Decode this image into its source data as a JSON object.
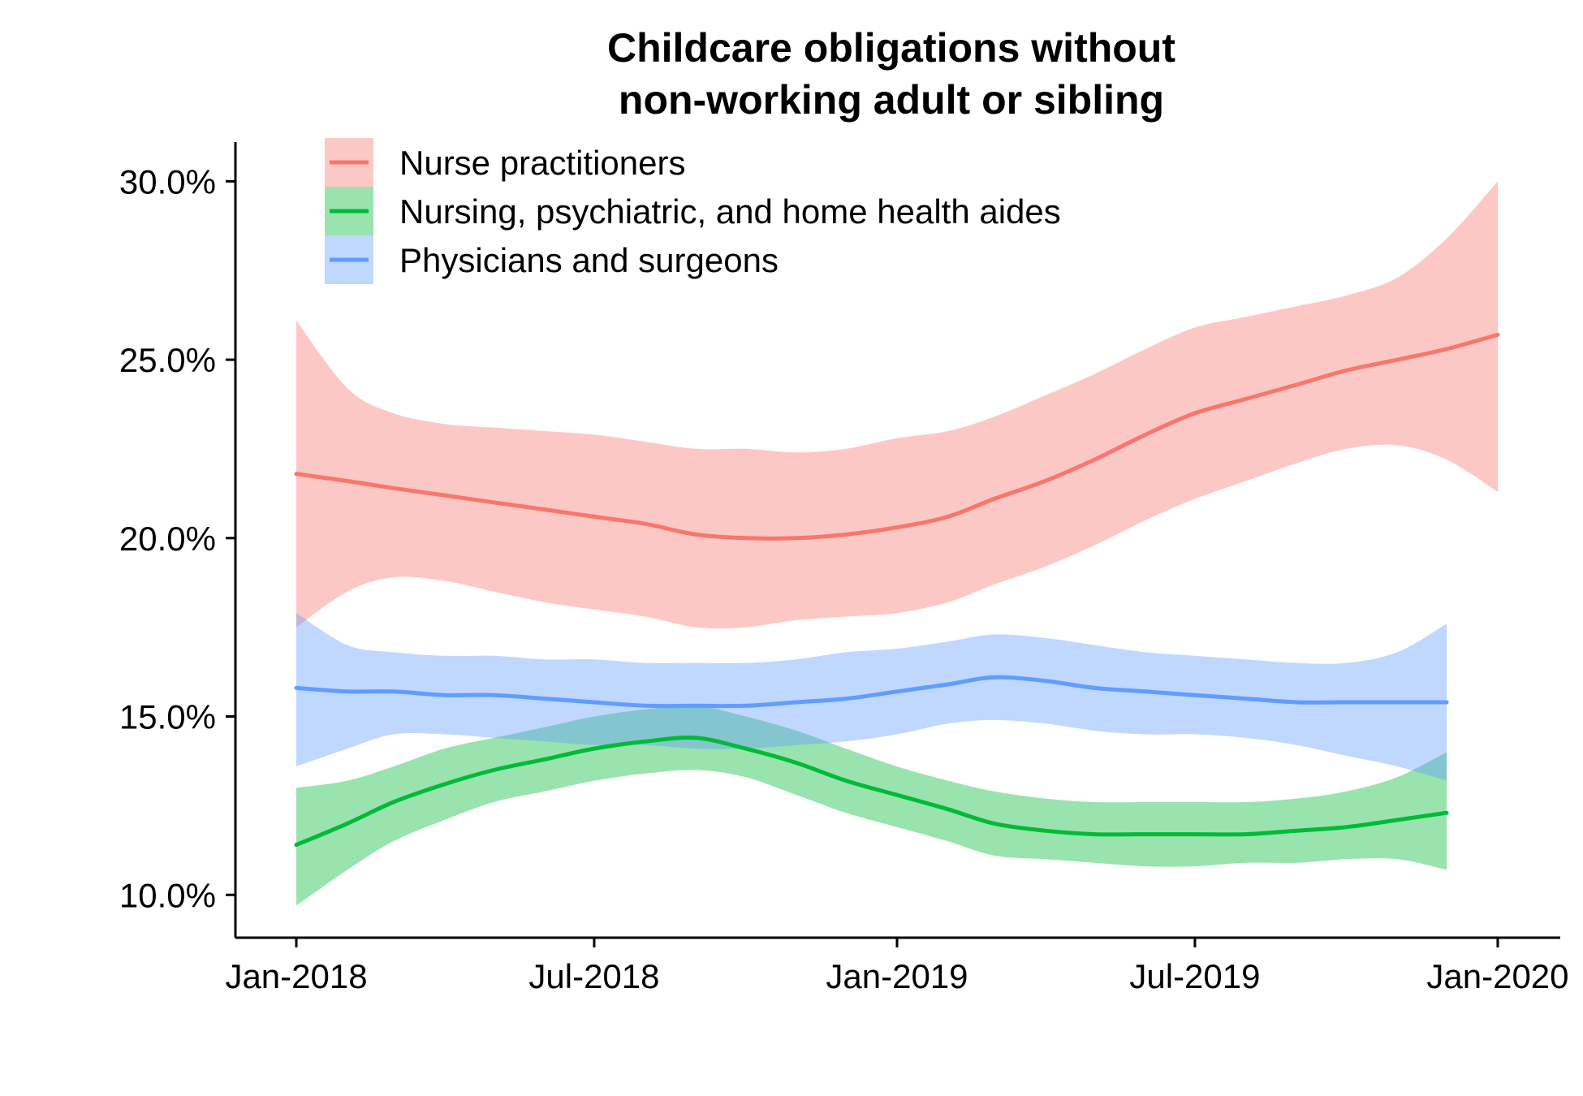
{
  "chart_data": {
    "type": "line",
    "title_lines": [
      "Childcare obligations without",
      "non-working adult or sibling"
    ],
    "xlabel": "",
    "ylabel": "",
    "x_ticks": [
      "Jan-2018",
      "Jul-2018",
      "Jan-2019",
      "Jul-2019",
      "Jan-2020"
    ],
    "xlim": [
      "2017-11-25",
      "2020-02-08"
    ],
    "y_ticks": [
      "10.0%",
      "15.0%",
      "20.0%",
      "25.0%",
      "30.0%"
    ],
    "y_tick_values": [
      10,
      15,
      20,
      25,
      30
    ],
    "ylim": [
      8.8,
      31.1
    ],
    "legend_position": "top-left",
    "grid": false,
    "series": [
      {
        "name": "Nurse practitioners",
        "color": "#F8766D",
        "x": [
          "2018-01-01",
          "2018-02-01",
          "2018-03-01",
          "2018-04-01",
          "2018-05-01",
          "2018-06-01",
          "2018-07-01",
          "2018-08-01",
          "2018-09-01",
          "2018-10-01",
          "2018-11-01",
          "2018-12-01",
          "2019-01-01",
          "2019-02-01",
          "2019-03-01",
          "2019-04-01",
          "2019-05-01",
          "2019-06-01",
          "2019-07-01",
          "2019-08-01",
          "2019-09-01",
          "2019-10-01",
          "2019-11-01",
          "2019-12-01",
          "2020-01-01"
        ],
        "y": [
          21.8,
          21.6,
          21.4,
          21.2,
          21.0,
          20.8,
          20.6,
          20.4,
          20.1,
          20.0,
          20.0,
          20.1,
          20.3,
          20.6,
          21.1,
          21.6,
          22.2,
          22.9,
          23.5,
          23.9,
          24.3,
          24.7,
          25.0,
          25.3,
          25.7
        ],
        "ci_low": [
          17.5,
          18.5,
          18.9,
          18.8,
          18.5,
          18.2,
          18.0,
          17.8,
          17.5,
          17.5,
          17.7,
          17.8,
          17.9,
          18.2,
          18.7,
          19.2,
          19.8,
          20.5,
          21.1,
          21.6,
          22.1,
          22.5,
          22.6,
          22.2,
          21.3
        ],
        "ci_high": [
          26.1,
          24.2,
          23.5,
          23.2,
          23.1,
          23.0,
          22.9,
          22.7,
          22.5,
          22.5,
          22.4,
          22.5,
          22.8,
          23.0,
          23.4,
          24.0,
          24.6,
          25.3,
          25.9,
          26.2,
          26.5,
          26.8,
          27.3,
          28.4,
          30.0
        ]
      },
      {
        "name": "Nursing, psychiatric, and home health aides",
        "color": "#00BA38",
        "x": [
          "2018-01-01",
          "2018-02-01",
          "2018-03-01",
          "2018-04-01",
          "2018-05-01",
          "2018-06-01",
          "2018-07-01",
          "2018-08-01",
          "2018-09-01",
          "2018-10-01",
          "2018-11-01",
          "2018-12-01",
          "2019-01-01",
          "2019-02-01",
          "2019-03-01",
          "2019-04-01",
          "2019-05-01",
          "2019-06-01",
          "2019-07-01",
          "2019-08-01",
          "2019-09-01",
          "2019-10-01",
          "2019-11-01",
          "2019-12-01"
        ],
        "y": [
          11.4,
          12.0,
          12.6,
          13.1,
          13.5,
          13.8,
          14.1,
          14.3,
          14.4,
          14.1,
          13.7,
          13.2,
          12.8,
          12.4,
          12.0,
          11.8,
          11.7,
          11.7,
          11.7,
          11.7,
          11.8,
          11.9,
          12.1,
          12.3
        ],
        "ci_low": [
          9.7,
          10.7,
          11.5,
          12.1,
          12.6,
          12.9,
          13.2,
          13.4,
          13.5,
          13.3,
          12.8,
          12.3,
          11.9,
          11.5,
          11.1,
          11.0,
          10.9,
          10.8,
          10.8,
          10.9,
          10.9,
          11.0,
          11.0,
          10.7
        ],
        "ci_high": [
          13.0,
          13.2,
          13.6,
          14.1,
          14.4,
          14.7,
          15.0,
          15.2,
          15.3,
          15.0,
          14.6,
          14.1,
          13.6,
          13.2,
          12.9,
          12.7,
          12.6,
          12.6,
          12.6,
          12.6,
          12.7,
          12.9,
          13.3,
          14.0
        ]
      },
      {
        "name": "Physicians and surgeons",
        "color": "#619CFF",
        "x": [
          "2018-01-01",
          "2018-02-01",
          "2018-03-01",
          "2018-04-01",
          "2018-05-01",
          "2018-06-01",
          "2018-07-01",
          "2018-08-01",
          "2018-09-01",
          "2018-10-01",
          "2018-11-01",
          "2018-12-01",
          "2019-01-01",
          "2019-02-01",
          "2019-03-01",
          "2019-04-01",
          "2019-05-01",
          "2019-06-01",
          "2019-07-01",
          "2019-08-01",
          "2019-09-01",
          "2019-10-01",
          "2019-11-01",
          "2019-12-01"
        ],
        "y": [
          15.8,
          15.7,
          15.7,
          15.6,
          15.6,
          15.5,
          15.4,
          15.3,
          15.3,
          15.3,
          15.4,
          15.5,
          15.7,
          15.9,
          16.1,
          16.0,
          15.8,
          15.7,
          15.6,
          15.5,
          15.4,
          15.4,
          15.4,
          15.4
        ],
        "ci_low": [
          13.6,
          14.1,
          14.5,
          14.5,
          14.4,
          14.3,
          14.2,
          14.2,
          14.1,
          14.1,
          14.2,
          14.3,
          14.5,
          14.8,
          14.9,
          14.8,
          14.6,
          14.5,
          14.5,
          14.4,
          14.2,
          13.9,
          13.6,
          13.2
        ],
        "ci_high": [
          17.9,
          17.0,
          16.8,
          16.7,
          16.7,
          16.6,
          16.6,
          16.5,
          16.5,
          16.5,
          16.6,
          16.8,
          16.9,
          17.1,
          17.3,
          17.2,
          17.0,
          16.8,
          16.7,
          16.6,
          16.5,
          16.5,
          16.8,
          17.6
        ]
      }
    ]
  }
}
